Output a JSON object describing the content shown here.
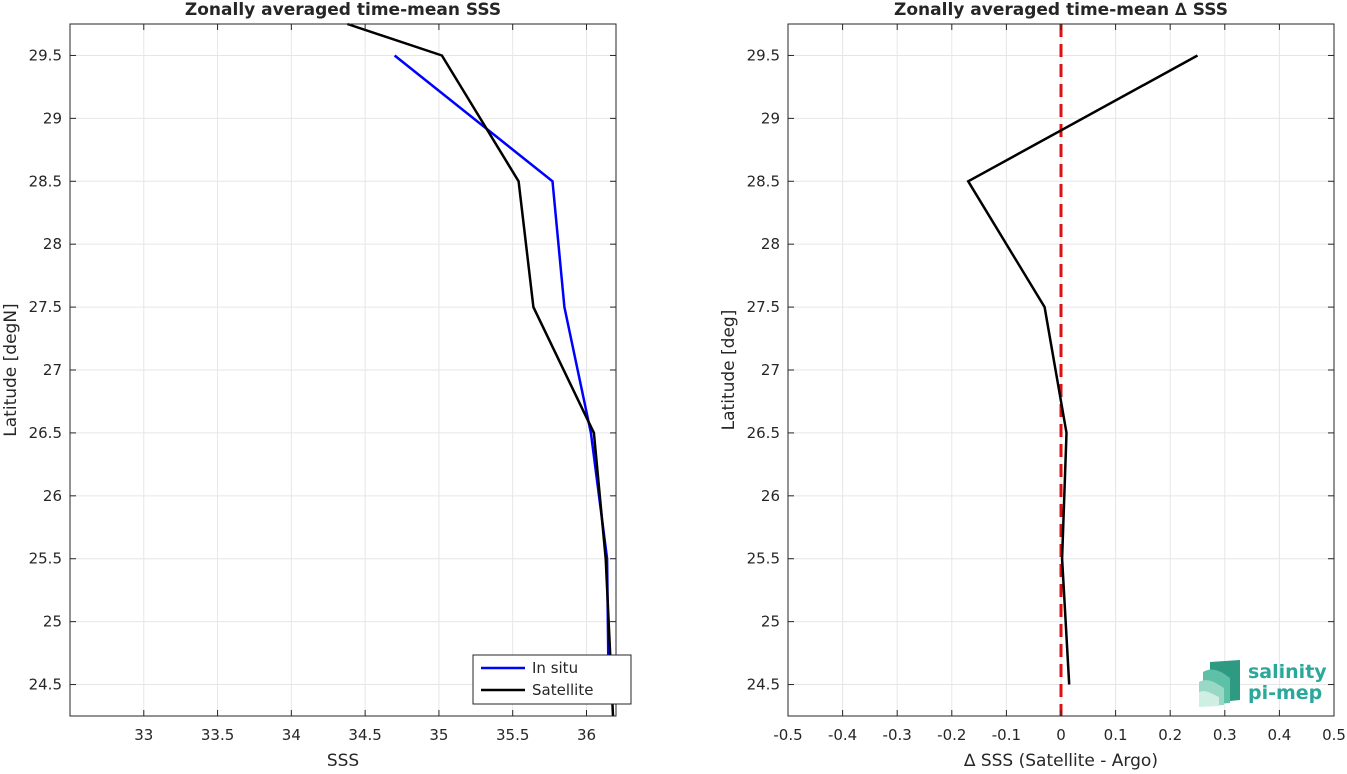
{
  "chart_data": [
    {
      "type": "line",
      "title": "Zonally averaged time-mean SSS",
      "xlabel": "SSS",
      "ylabel": "Latitude [degN]",
      "xlim": [
        32.5,
        36.2
      ],
      "ylim": [
        24.25,
        29.75
      ],
      "xticks": [
        33,
        33.5,
        34,
        34.5,
        35,
        35.5,
        36
      ],
      "xtick_labels": [
        "33",
        "33.5",
        "34",
        "34.5",
        "35",
        "35.5",
        "36"
      ],
      "yticks": [
        24.5,
        25,
        25.5,
        26,
        26.5,
        27,
        27.5,
        28,
        28.5,
        29,
        29.5
      ],
      "ytick_labels": [
        "24.5",
        "25",
        "25.5",
        "26",
        "26.5",
        "27",
        "27.5",
        "28",
        "28.5",
        "29",
        "29.5"
      ],
      "grid": true,
      "legend_position": "bottom-right",
      "series": [
        {
          "name": "In situ",
          "color": "#0000ff",
          "x": [
            36.15,
            36.14,
            36.03,
            35.85,
            35.77,
            34.7
          ],
          "y": [
            24.5,
            25.5,
            26.5,
            27.5,
            28.5,
            29.5
          ]
        },
        {
          "name": "Satellite",
          "color": "#000000",
          "x": [
            36.18,
            36.17,
            36.13,
            36.05,
            35.64,
            35.54,
            35.02,
            34.38
          ],
          "y": [
            24.25,
            24.5,
            25.5,
            26.5,
            27.5,
            28.5,
            29.5,
            29.75
          ]
        }
      ]
    },
    {
      "type": "line",
      "title": "Zonally averaged time-mean ∆ SSS",
      "xlabel": "∆ SSS (Satellite - Argo)",
      "ylabel": "Latitude [deg]",
      "xlim": [
        -0.5,
        0.5
      ],
      "ylim": [
        24.25,
        29.75
      ],
      "xticks": [
        -0.5,
        -0.4,
        -0.3,
        -0.2,
        -0.1,
        0,
        0.1,
        0.2,
        0.3,
        0.4,
        0.5
      ],
      "xtick_labels": [
        "-0.5",
        "-0.4",
        "-0.3",
        "-0.2",
        "-0.1",
        "0",
        "0.1",
        "0.2",
        "0.3",
        "0.4",
        "0.5"
      ],
      "yticks": [
        24.5,
        25,
        25.5,
        26,
        26.5,
        27,
        27.5,
        28,
        28.5,
        29,
        29.5
      ],
      "ytick_labels": [
        "24.5",
        "25",
        "25.5",
        "26",
        "26.5",
        "27",
        "27.5",
        "28",
        "28.5",
        "29",
        "29.5"
      ],
      "grid": true,
      "reference_line": {
        "x": 0,
        "color": "#dd1111",
        "style": "dashed"
      },
      "series": [
        {
          "color": "#000000",
          "x": [
            0.015,
            0.002,
            0.01,
            -0.03,
            -0.17,
            0.25
          ],
          "y": [
            24.5,
            25.5,
            26.5,
            27.5,
            28.5,
            29.5
          ]
        }
      ]
    }
  ],
  "logo": {
    "line1": "salinity",
    "line2": "pi-mep",
    "color": "#2aa89a"
  }
}
